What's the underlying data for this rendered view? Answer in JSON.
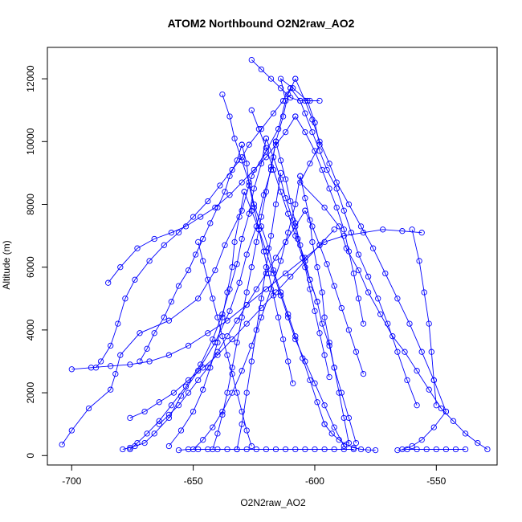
{
  "chart_data": {
    "type": "line",
    "title": "ATOM2 Northbound O2N2raw_AO2",
    "xlabel": "O2N2raw_AO2",
    "ylabel": "Altitude (m)",
    "xlim": [
      -710,
      -525
    ],
    "ylim": [
      -300,
      13000
    ],
    "x_ticks": [
      -700,
      -650,
      -600,
      -550
    ],
    "x_tick_labels": [
      "-700",
      "-650",
      "-600",
      "-550"
    ],
    "y_ticks": [
      0,
      2000,
      4000,
      6000,
      8000,
      10000,
      12000
    ],
    "y_tick_labels": [
      "0",
      "2000",
      "4000",
      "6000",
      "8000",
      "10000",
      "12000"
    ],
    "grid": false,
    "legend": "none",
    "color": "#0000ff",
    "series": [
      {
        "x": [
          -704,
          -700,
          -693,
          -684,
          -682,
          -680,
          -672,
          -660,
          -648,
          -641,
          -637,
          -630,
          -626,
          -620,
          -615,
          -612,
          -614,
          -609,
          -603,
          -600
        ],
        "y": [
          350,
          800,
          1500,
          2100,
          2600,
          3200,
          3900,
          4300,
          5000,
          5900,
          6700,
          7800,
          8900,
          9700,
          10400,
          11300,
          12000,
          11700,
          11300,
          10600
        ]
      },
      {
        "x": [
          -600,
          -598,
          -602,
          -606,
          -596,
          -590,
          -587,
          -582,
          -578,
          -573,
          -568,
          -563,
          -558,
          -553,
          -548,
          -543,
          -538,
          -533,
          -529
        ],
        "y": [
          10600,
          9900,
          9300,
          8700,
          7900,
          7300,
          6600,
          5900,
          5200,
          4500,
          3800,
          3300,
          2700,
          2100,
          1500,
          1100,
          700,
          400,
          200
        ]
      },
      {
        "x": [
          -679,
          -676,
          -674,
          -670,
          -666,
          -660,
          -655,
          -648,
          -641,
          -635,
          -631,
          -628,
          -624,
          -621,
          -618,
          -616,
          -613,
          -611,
          -608
        ],
        "y": [
          200,
          250,
          300,
          400,
          700,
          1200,
          1900,
          2700,
          3600,
          4600,
          5500,
          6400,
          7300,
          8300,
          9100,
          10000,
          10800,
          11500,
          12000
        ]
      },
      {
        "x": [
          -608,
          -604,
          -601,
          -598,
          -594,
          -591,
          -586,
          -581,
          -576,
          -571,
          -566,
          -561,
          -556,
          -551,
          -546
        ],
        "y": [
          12000,
          11300,
          10700,
          10000,
          9300,
          8700,
          8000,
          7300,
          6600,
          5800,
          5000,
          4200,
          3300,
          2400,
          1400
        ]
      },
      {
        "x": [
          -546,
          -551,
          -556,
          -560,
          -564
        ],
        "y": [
          1400,
          900,
          500,
          300,
          200
        ]
      },
      {
        "x": [
          -690,
          -688,
          -684,
          -681,
          -678,
          -674,
          -668,
          -662,
          -656,
          -650,
          -644,
          -639,
          -634,
          -630,
          -627,
          -622,
          -617,
          -613,
          -610
        ],
        "y": [
          2800,
          3000,
          3500,
          4200,
          5000,
          5600,
          6200,
          6700,
          7100,
          7600,
          8100,
          8600,
          9100,
          9500,
          9900,
          10400,
          10900,
          11300,
          11700
        ]
      },
      {
        "x": [
          -610,
          -606,
          -604,
          -601,
          -598,
          -595,
          -591,
          -588,
          -585,
          -582,
          -578,
          -574,
          -570,
          -566,
          -562,
          -558
        ],
        "y": [
          11700,
          11300,
          10900,
          10300,
          9700,
          9100,
          8500,
          7800,
          7100,
          6400,
          5700,
          5000,
          4200,
          3300,
          2400,
          1600
        ]
      },
      {
        "x": [
          -676,
          -673,
          -669,
          -664,
          -659,
          -653,
          -647,
          -642,
          -638,
          -635,
          -632,
          -630,
          -627,
          -625,
          -622,
          -620
        ],
        "y": [
          200,
          400,
          700,
          1100,
          1600,
          2200,
          2900,
          3700,
          4500,
          5300,
          6100,
          6900,
          7700,
          8500,
          9300,
          10100
        ]
      },
      {
        "x": [
          -620,
          -617,
          -614,
          -612,
          -609,
          -607,
          -604,
          -602,
          -599,
          -597,
          -594,
          -592,
          -589,
          -586,
          -583
        ],
        "y": [
          10100,
          9500,
          8800,
          8200,
          7500,
          6900,
          6200,
          5600,
          4900,
          4200,
          3500,
          2800,
          2000,
          1200,
          400
        ]
      },
      {
        "x": [
          -660,
          -655,
          -650,
          -646,
          -643,
          -640,
          -638,
          -636,
          -634,
          -633,
          -631,
          -629
        ],
        "y": [
          300,
          800,
          1400,
          2100,
          2800,
          3600,
          4400,
          5200,
          6000,
          6800,
          7600,
          8400
        ]
      },
      {
        "x": [
          -629,
          -626,
          -623,
          -620,
          -617,
          -614,
          -611,
          -608,
          -604,
          -600,
          -596,
          -592,
          -588
        ],
        "y": [
          8400,
          7800,
          7200,
          6500,
          5800,
          5100,
          4400,
          3700,
          3000,
          2300,
          1600,
          900,
          300
        ]
      },
      {
        "x": [
          -650,
          -646,
          -642,
          -638,
          -634,
          -630,
          -626,
          -622,
          -618,
          -614,
          -611,
          -608,
          -606
        ],
        "y": [
          200,
          500,
          900,
          1400,
          2000,
          2700,
          3500,
          4400,
          5300,
          6200,
          7100,
          8000,
          8900
        ]
      },
      {
        "x": [
          -606,
          -604,
          -602,
          -601,
          -599,
          -597,
          -596,
          -594,
          -592,
          -590,
          -588,
          -586
        ],
        "y": [
          8900,
          8200,
          7500,
          6800,
          6000,
          5200,
          4400,
          3600,
          2800,
          2000,
          1200,
          400
        ]
      },
      {
        "x": [
          -685,
          -680,
          -673,
          -666,
          -659,
          -653,
          -647,
          -641,
          -635,
          -630,
          -625,
          -620,
          -616,
          -612,
          -608
        ],
        "y": [
          5500,
          6000,
          6600,
          6900,
          7100,
          7300,
          7600,
          7900,
          8300,
          8700,
          9100,
          9500,
          9900,
          10300,
          10800
        ]
      },
      {
        "x": [
          -608,
          -604,
          -600,
          -597,
          -594,
          -591,
          -588,
          -586,
          -584,
          -582,
          -580
        ],
        "y": [
          10800,
          10300,
          9700,
          9100,
          8500,
          7900,
          7200,
          6500,
          5800,
          5000,
          4200
        ]
      },
      {
        "x": [
          -672,
          -669,
          -666,
          -662,
          -659,
          -656,
          -652,
          -649,
          -646,
          -643,
          -640,
          -637,
          -635,
          -632,
          -630
        ],
        "y": [
          3000,
          3400,
          3900,
          4400,
          4900,
          5400,
          5900,
          6400,
          6900,
          7400,
          7900,
          8400,
          8900,
          9400,
          9900
        ]
      },
      {
        "x": [
          -630,
          -628,
          -627,
          -625,
          -623,
          -621,
          -619,
          -617,
          -615,
          -613,
          -611,
          -609
        ],
        "y": [
          9900,
          9300,
          8600,
          7900,
          7200,
          6500,
          5800,
          5100,
          4400,
          3700,
          3000,
          2300
        ]
      },
      {
        "x": [
          -642,
          -640,
          -638,
          -636,
          -634,
          -632,
          -630,
          -628,
          -626,
          -624,
          -622,
          -620,
          -618,
          -616
        ],
        "y": [
          200,
          700,
          1300,
          2000,
          2800,
          3600,
          4400,
          5200,
          6000,
          6800,
          7600,
          8400,
          9200,
          10000
        ]
      },
      {
        "x": [
          -616,
          -614,
          -612,
          -610,
          -608,
          -606,
          -604,
          -602,
          -600,
          -598,
          -596,
          -594
        ],
        "y": [
          10000,
          9400,
          8800,
          8100,
          7400,
          6700,
          6000,
          5300,
          4600,
          3900,
          3200,
          2500
        ]
      },
      {
        "x": [
          -700,
          -692,
          -684,
          -676,
          -668,
          -660,
          -652,
          -644,
          -636,
          -628,
          -620,
          -612,
          -604,
          -596,
          -588,
          -580,
          -572,
          -564,
          -556
        ],
        "y": [
          2750,
          2800,
          2850,
          2900,
          3000,
          3200,
          3500,
          3900,
          4300,
          4800,
          5300,
          5800,
          6300,
          6800,
          7000,
          7100,
          7200,
          7150,
          7100
        ]
      },
      {
        "x": [
          -632,
          -630,
          -628,
          -626,
          -624,
          -622,
          -620,
          -618,
          -616,
          -614
        ],
        "y": [
          200,
          1000,
          2000,
          3000,
          4000,
          5000,
          6000,
          7000,
          8000,
          9000
        ]
      },
      {
        "x": [
          -638,
          -635,
          -633,
          -630,
          -627,
          -625,
          -622,
          -619,
          -617,
          -614,
          -611,
          -608,
          -605,
          -602,
          -599,
          -596
        ],
        "y": [
          11500,
          10800,
          10100,
          9400,
          8700,
          8000,
          7300,
          6600,
          5900,
          5200,
          4500,
          3800,
          3100,
          2400,
          1700,
          1000
        ]
      },
      {
        "x": [
          -596,
          -593,
          -590,
          -587,
          -584,
          -581,
          -578,
          -575
        ],
        "y": [
          1000,
          700,
          500,
          350,
          250,
          200,
          180,
          170
        ]
      },
      {
        "x": [
          -664,
          -660,
          -656,
          -652,
          -648,
          -644,
          -640,
          -636,
          -632,
          -628,
          -624,
          -620,
          -616,
          -612,
          -608,
          -604
        ],
        "y": [
          1000,
          1300,
          1600,
          2000,
          2400,
          2800,
          3300,
          3800,
          4300,
          4800,
          5300,
          5800,
          6300,
          6800,
          7300,
          7800
        ]
      },
      {
        "x": [
          -604,
          -601,
          -598,
          -595,
          -592,
          -589,
          -586,
          -583,
          -580
        ],
        "y": [
          7800,
          7300,
          6700,
          6100,
          5400,
          4700,
          4000,
          3300,
          2600
        ]
      },
      {
        "x": [
          -648,
          -646,
          -644,
          -642,
          -640,
          -638,
          -636,
          -634,
          -632,
          -630,
          -628,
          -626
        ],
        "y": [
          6800,
          6200,
          5600,
          5000,
          4400,
          3800,
          3200,
          2600,
          2000,
          1400,
          800,
          300
        ]
      },
      {
        "x": [
          -676,
          -670,
          -664,
          -658,
          -652,
          -646,
          -640,
          -634,
          -628,
          -622,
          -616,
          -610,
          -604,
          -598,
          -592
        ],
        "y": [
          1200,
          1400,
          1700,
          2000,
          2400,
          2800,
          3200,
          3700,
          4200,
          4700,
          5200,
          5700,
          6200,
          6700,
          7200
        ]
      },
      {
        "x": [
          -626,
          -623,
          -620,
          -617,
          -614,
          -611,
          -608,
          -605,
          -602,
          -599
        ],
        "y": [
          11000,
          10400,
          9800,
          9100,
          8400,
          7700,
          7000,
          6300,
          5600,
          4900
        ]
      },
      {
        "x": [
          -626,
          -622,
          -618,
          -614,
          -610,
          -606,
          -602,
          -598
        ],
        "y": [
          12600,
          12300,
          12000,
          11700,
          11400,
          11300,
          11300,
          11300
        ]
      },
      {
        "x": [
          -656,
          -652,
          -648,
          -644,
          -640,
          -636,
          -632,
          -628,
          -624,
          -620,
          -616,
          -612,
          -608,
          -604,
          -600,
          -596,
          -592,
          -588,
          -584
        ],
        "y": [
          170,
          200,
          200,
          200,
          200,
          200,
          200,
          200,
          200,
          200,
          200,
          200,
          200,
          200,
          200,
          200,
          200,
          200,
          200
        ]
      },
      {
        "x": [
          -566,
          -562,
          -558,
          -554,
          -550,
          -546,
          -542,
          -538
        ],
        "y": [
          170,
          200,
          200,
          200,
          200,
          200,
          200,
          200
        ]
      },
      {
        "x": [
          -560,
          -557,
          -555,
          -553,
          -552,
          -551,
          -550
        ],
        "y": [
          7200,
          6200,
          5200,
          4200,
          3300,
          2400,
          1600
        ]
      }
    ]
  }
}
